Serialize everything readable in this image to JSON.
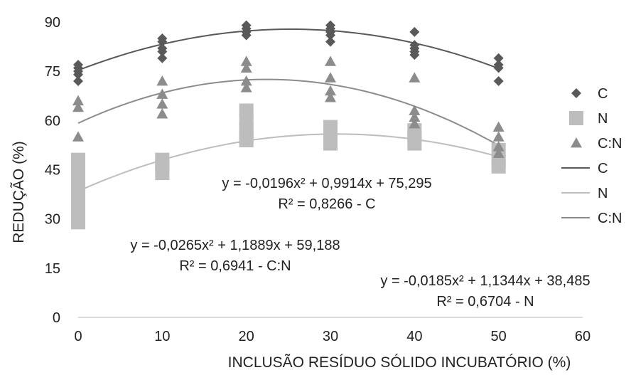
{
  "chart_data": {
    "type": "scatter",
    "title": "",
    "xlabel": "INCLUSÃO RESÍDUO SÓLIDO INCUBATÓRIO (%)",
    "ylabel": "REDUÇÃO (%)",
    "xlim": [
      0,
      60
    ],
    "ylim": [
      0,
      90
    ],
    "xticks": [
      "0",
      "10",
      "20",
      "30",
      "40",
      "50",
      "60"
    ],
    "yticks": [
      "0",
      "15",
      "30",
      "45",
      "60",
      "75",
      "90"
    ],
    "grid": false,
    "legend_position": "right",
    "colors": {
      "C": "#595959",
      "N": "#bdbdbd",
      "CN": "#8c8c8c"
    },
    "series": [
      {
        "name": "C",
        "marker": "diamond",
        "x": [
          0,
          0,
          0,
          0,
          0,
          10,
          10,
          10,
          10,
          10,
          20,
          20,
          20,
          20,
          30,
          30,
          30,
          30,
          30,
          40,
          40,
          40,
          40,
          40,
          50,
          50,
          50,
          50
        ],
        "y": [
          77,
          76,
          75,
          74,
          72,
          85,
          84,
          82,
          81,
          79,
          89,
          88,
          87,
          86,
          89,
          88,
          87,
          86,
          84,
          87,
          83,
          82,
          81,
          80,
          79,
          77,
          76,
          72
        ]
      },
      {
        "name": "N",
        "marker": "square",
        "x": [
          0,
          0,
          0,
          0,
          0,
          0,
          0,
          10,
          10,
          10,
          20,
          20,
          20,
          20,
          20,
          30,
          30,
          30,
          30,
          40,
          40,
          40,
          50,
          50,
          50
        ],
        "y": [
          48,
          45,
          42,
          39,
          36,
          32,
          29,
          48,
          46,
          44,
          63,
          60,
          57,
          55,
          54,
          58,
          56,
          54,
          53,
          57,
          55,
          53,
          51,
          48,
          46
        ]
      },
      {
        "name": "C:N",
        "marker": "triangle",
        "x": [
          0,
          0,
          0,
          10,
          10,
          10,
          10,
          20,
          20,
          20,
          20,
          30,
          30,
          30,
          30,
          40,
          40,
          40,
          40,
          50,
          50,
          50,
          50
        ],
        "y": [
          66,
          64,
          55,
          72,
          68,
          65,
          62,
          78,
          76,
          72,
          70,
          78,
          73,
          69,
          67,
          73,
          63,
          61,
          59,
          58,
          55,
          52,
          50
        ]
      }
    ],
    "trendlines": [
      {
        "name": "C",
        "a": -0.0196,
        "b": 0.9914,
        "c": 75.295,
        "equation": "y = -0,0196x² + 0,9914x + 75,295",
        "r2": "R² = 0,8266 - C"
      },
      {
        "name": "N",
        "a": -0.0185,
        "b": 1.1344,
        "c": 38.485,
        "equation": "y = -0,0185x² + 1,1344x + 38,485",
        "r2": "R² = 0,6704 - N"
      },
      {
        "name": "C:N",
        "a": -0.0265,
        "b": 1.1889,
        "c": 59.188,
        "equation": "y = -0,0265x² + 1,1889x + 59,188",
        "r2": "R² = 0,6941 - C:N"
      }
    ],
    "legend": [
      "C",
      "N",
      "C:N",
      "C",
      "N",
      "C:N"
    ]
  }
}
